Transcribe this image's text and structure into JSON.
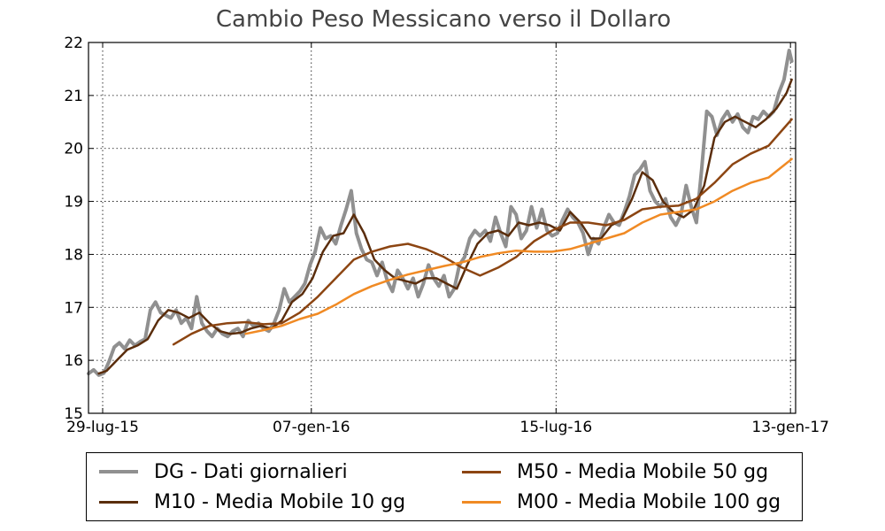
{
  "chart_data": {
    "type": "line",
    "title": "Cambio Peso  Messicano verso il Dollaro",
    "xlabel": "",
    "ylabel": "",
    "ylim": [
      15,
      22
    ],
    "y_ticks": [
      15,
      16,
      17,
      18,
      19,
      20,
      21,
      22
    ],
    "x_range": [
      "2015-07-18",
      "2017-01-17"
    ],
    "x_ticks": [
      {
        "date": "2015-07-29",
        "label": "29-lug-15"
      },
      {
        "date": "2016-01-07",
        "label": "07-gen-16"
      },
      {
        "date": "2016-07-15",
        "label": "15-lug-16"
      },
      {
        "date": "2017-01-13",
        "label": "13-gen-17"
      }
    ],
    "grid": true,
    "legend_position": "bottom",
    "series": [
      {
        "name": "DG - Dati giornalieri",
        "color": "#909090",
        "width": 4,
        "points": [
          [
            "2015-07-18",
            15.75
          ],
          [
            "2015-07-22",
            15.82
          ],
          [
            "2015-07-26",
            15.72
          ],
          [
            "2015-07-30",
            15.76
          ],
          [
            "2015-08-03",
            15.98
          ],
          [
            "2015-08-07",
            16.25
          ],
          [
            "2015-08-11",
            16.33
          ],
          [
            "2015-08-15",
            16.22
          ],
          [
            "2015-08-19",
            16.38
          ],
          [
            "2015-08-23",
            16.28
          ],
          [
            "2015-08-27",
            16.35
          ],
          [
            "2015-08-31",
            16.4
          ],
          [
            "2015-09-04",
            16.95
          ],
          [
            "2015-09-08",
            17.1
          ],
          [
            "2015-09-12",
            16.9
          ],
          [
            "2015-09-16",
            16.85
          ],
          [
            "2015-09-20",
            16.8
          ],
          [
            "2015-09-24",
            16.95
          ],
          [
            "2015-09-28",
            16.7
          ],
          [
            "2015-10-02",
            16.8
          ],
          [
            "2015-10-06",
            16.6
          ],
          [
            "2015-10-10",
            17.2
          ],
          [
            "2015-10-14",
            16.7
          ],
          [
            "2015-10-18",
            16.55
          ],
          [
            "2015-10-22",
            16.45
          ],
          [
            "2015-10-26",
            16.6
          ],
          [
            "2015-10-30",
            16.5
          ],
          [
            "2015-11-03",
            16.45
          ],
          [
            "2015-11-07",
            16.55
          ],
          [
            "2015-11-11",
            16.6
          ],
          [
            "2015-11-15",
            16.45
          ],
          [
            "2015-11-19",
            16.75
          ],
          [
            "2015-11-23",
            16.65
          ],
          [
            "2015-11-27",
            16.7
          ],
          [
            "2015-12-01",
            16.6
          ],
          [
            "2015-12-05",
            16.55
          ],
          [
            "2015-12-09",
            16.7
          ],
          [
            "2015-12-13",
            16.95
          ],
          [
            "2015-12-17",
            17.35
          ],
          [
            "2015-12-21",
            17.1
          ],
          [
            "2015-12-25",
            17.2
          ],
          [
            "2015-12-29",
            17.3
          ],
          [
            "2016-01-02",
            17.45
          ],
          [
            "2016-01-06",
            17.8
          ],
          [
            "2016-01-10",
            18.05
          ],
          [
            "2016-01-14",
            18.5
          ],
          [
            "2016-01-18",
            18.3
          ],
          [
            "2016-01-22",
            18.35
          ],
          [
            "2016-01-26",
            18.2
          ],
          [
            "2016-01-30",
            18.55
          ],
          [
            "2016-02-03",
            18.85
          ],
          [
            "2016-02-07",
            19.2
          ],
          [
            "2016-02-11",
            18.4
          ],
          [
            "2016-02-15",
            18.1
          ],
          [
            "2016-02-19",
            17.9
          ],
          [
            "2016-02-23",
            17.85
          ],
          [
            "2016-02-27",
            17.6
          ],
          [
            "2016-03-02",
            17.85
          ],
          [
            "2016-03-06",
            17.5
          ],
          [
            "2016-03-10",
            17.3
          ],
          [
            "2016-03-14",
            17.7
          ],
          [
            "2016-03-18",
            17.55
          ],
          [
            "2016-03-22",
            17.35
          ],
          [
            "2016-03-26",
            17.55
          ],
          [
            "2016-03-30",
            17.2
          ],
          [
            "2016-04-03",
            17.45
          ],
          [
            "2016-04-07",
            17.8
          ],
          [
            "2016-04-11",
            17.55
          ],
          [
            "2016-04-15",
            17.4
          ],
          [
            "2016-04-19",
            17.6
          ],
          [
            "2016-04-23",
            17.2
          ],
          [
            "2016-04-27",
            17.35
          ],
          [
            "2016-05-01",
            17.8
          ],
          [
            "2016-05-05",
            17.95
          ],
          [
            "2016-05-09",
            18.3
          ],
          [
            "2016-05-13",
            18.45
          ],
          [
            "2016-05-17",
            18.35
          ],
          [
            "2016-05-21",
            18.45
          ],
          [
            "2016-05-25",
            18.25
          ],
          [
            "2016-05-29",
            18.7
          ],
          [
            "2016-06-02",
            18.4
          ],
          [
            "2016-06-06",
            18.15
          ],
          [
            "2016-06-10",
            18.9
          ],
          [
            "2016-06-14",
            18.75
          ],
          [
            "2016-06-18",
            18.3
          ],
          [
            "2016-06-22",
            18.45
          ],
          [
            "2016-06-26",
            18.9
          ],
          [
            "2016-06-30",
            18.5
          ],
          [
            "2016-07-04",
            18.85
          ],
          [
            "2016-07-08",
            18.45
          ],
          [
            "2016-07-12",
            18.35
          ],
          [
            "2016-07-16",
            18.4
          ],
          [
            "2016-07-20",
            18.65
          ],
          [
            "2016-07-24",
            18.85
          ],
          [
            "2016-07-28",
            18.7
          ],
          [
            "2016-08-01",
            18.6
          ],
          [
            "2016-08-05",
            18.4
          ],
          [
            "2016-08-09",
            18.0
          ],
          [
            "2016-08-13",
            18.3
          ],
          [
            "2016-08-17",
            18.2
          ],
          [
            "2016-08-21",
            18.5
          ],
          [
            "2016-08-25",
            18.75
          ],
          [
            "2016-08-29",
            18.6
          ],
          [
            "2016-09-02",
            18.55
          ],
          [
            "2016-09-06",
            18.8
          ],
          [
            "2016-09-10",
            19.1
          ],
          [
            "2016-09-14",
            19.5
          ],
          [
            "2016-09-18",
            19.6
          ],
          [
            "2016-09-22",
            19.75
          ],
          [
            "2016-09-26",
            19.2
          ],
          [
            "2016-09-30",
            19.0
          ],
          [
            "2016-10-04",
            18.9
          ],
          [
            "2016-10-08",
            19.05
          ],
          [
            "2016-10-12",
            18.7
          ],
          [
            "2016-10-16",
            18.55
          ],
          [
            "2016-10-20",
            18.75
          ],
          [
            "2016-10-24",
            19.3
          ],
          [
            "2016-10-28",
            18.9
          ],
          [
            "2016-11-01",
            18.6
          ],
          [
            "2016-11-05",
            19.6
          ],
          [
            "2016-11-09",
            20.7
          ],
          [
            "2016-11-13",
            20.6
          ],
          [
            "2016-11-17",
            20.25
          ],
          [
            "2016-11-21",
            20.55
          ],
          [
            "2016-11-25",
            20.7
          ],
          [
            "2016-11-29",
            20.5
          ],
          [
            "2016-12-03",
            20.65
          ],
          [
            "2016-12-07",
            20.4
          ],
          [
            "2016-12-11",
            20.3
          ],
          [
            "2016-12-15",
            20.6
          ],
          [
            "2016-12-19",
            20.55
          ],
          [
            "2016-12-23",
            20.7
          ],
          [
            "2016-12-27",
            20.6
          ],
          [
            "2016-12-31",
            20.7
          ],
          [
            "2017-01-04",
            21.05
          ],
          [
            "2017-01-08",
            21.3
          ],
          [
            "2017-01-12",
            21.85
          ],
          [
            "2017-01-14",
            21.65
          ]
        ]
      },
      {
        "name": "M10 - Media Mobile 10 gg",
        "color": "#5a2d0c",
        "width": 2.5,
        "points": [
          [
            "2015-07-26",
            15.75
          ],
          [
            "2015-08-01",
            15.8
          ],
          [
            "2015-08-09",
            16.0
          ],
          [
            "2015-08-17",
            16.2
          ],
          [
            "2015-08-25",
            16.28
          ],
          [
            "2015-09-02",
            16.4
          ],
          [
            "2015-09-10",
            16.75
          ],
          [
            "2015-09-18",
            16.95
          ],
          [
            "2015-09-26",
            16.9
          ],
          [
            "2015-10-04",
            16.8
          ],
          [
            "2015-10-12",
            16.9
          ],
          [
            "2015-10-20",
            16.7
          ],
          [
            "2015-10-28",
            16.55
          ],
          [
            "2015-11-05",
            16.5
          ],
          [
            "2015-11-13",
            16.52
          ],
          [
            "2015-11-21",
            16.6
          ],
          [
            "2015-11-29",
            16.65
          ],
          [
            "2015-12-07",
            16.6
          ],
          [
            "2015-12-15",
            16.75
          ],
          [
            "2015-12-23",
            17.1
          ],
          [
            "2015-12-31",
            17.25
          ],
          [
            "2016-01-08",
            17.55
          ],
          [
            "2016-01-16",
            18.05
          ],
          [
            "2016-01-24",
            18.35
          ],
          [
            "2016-02-01",
            18.4
          ],
          [
            "2016-02-09",
            18.75
          ],
          [
            "2016-02-17",
            18.4
          ],
          [
            "2016-02-25",
            17.9
          ],
          [
            "2016-03-04",
            17.7
          ],
          [
            "2016-03-12",
            17.55
          ],
          [
            "2016-03-20",
            17.5
          ],
          [
            "2016-03-28",
            17.45
          ],
          [
            "2016-04-05",
            17.55
          ],
          [
            "2016-04-13",
            17.55
          ],
          [
            "2016-04-21",
            17.45
          ],
          [
            "2016-04-29",
            17.35
          ],
          [
            "2016-05-07",
            17.8
          ],
          [
            "2016-05-15",
            18.2
          ],
          [
            "2016-05-23",
            18.4
          ],
          [
            "2016-05-31",
            18.45
          ],
          [
            "2016-06-08",
            18.35
          ],
          [
            "2016-06-16",
            18.6
          ],
          [
            "2016-06-24",
            18.55
          ],
          [
            "2016-07-02",
            18.6
          ],
          [
            "2016-07-10",
            18.55
          ],
          [
            "2016-07-18",
            18.45
          ],
          [
            "2016-07-26",
            18.8
          ],
          [
            "2016-08-03",
            18.6
          ],
          [
            "2016-08-11",
            18.3
          ],
          [
            "2016-08-19",
            18.3
          ],
          [
            "2016-08-27",
            18.55
          ],
          [
            "2016-09-04",
            18.65
          ],
          [
            "2016-09-12",
            19.05
          ],
          [
            "2016-09-20",
            19.55
          ],
          [
            "2016-09-28",
            19.4
          ],
          [
            "2016-10-06",
            19.0
          ],
          [
            "2016-10-14",
            18.8
          ],
          [
            "2016-10-22",
            18.7
          ],
          [
            "2016-10-30",
            18.85
          ],
          [
            "2016-11-07",
            19.3
          ],
          [
            "2016-11-15",
            20.2
          ],
          [
            "2016-11-23",
            20.5
          ],
          [
            "2016-12-01",
            20.6
          ],
          [
            "2016-12-09",
            20.5
          ],
          [
            "2016-12-17",
            20.4
          ],
          [
            "2016-12-25",
            20.55
          ],
          [
            "2017-01-02",
            20.75
          ],
          [
            "2017-01-10",
            21.05
          ],
          [
            "2017-01-14",
            21.3
          ]
        ]
      },
      {
        "name": "M50 - Media Mobile 50 gg",
        "color": "#8c4512",
        "width": 2.5,
        "points": [
          [
            "2015-09-22",
            16.3
          ],
          [
            "2015-10-06",
            16.5
          ],
          [
            "2015-10-20",
            16.65
          ],
          [
            "2015-11-03",
            16.7
          ],
          [
            "2015-11-17",
            16.72
          ],
          [
            "2015-12-01",
            16.68
          ],
          [
            "2015-12-15",
            16.7
          ],
          [
            "2015-12-29",
            16.9
          ],
          [
            "2016-01-12",
            17.2
          ],
          [
            "2016-01-26",
            17.55
          ],
          [
            "2016-02-09",
            17.9
          ],
          [
            "2016-02-23",
            18.05
          ],
          [
            "2016-03-08",
            18.15
          ],
          [
            "2016-03-22",
            18.2
          ],
          [
            "2016-04-05",
            18.1
          ],
          [
            "2016-04-19",
            17.95
          ],
          [
            "2016-05-03",
            17.75
          ],
          [
            "2016-05-17",
            17.6
          ],
          [
            "2016-05-31",
            17.75
          ],
          [
            "2016-06-14",
            17.95
          ],
          [
            "2016-06-28",
            18.25
          ],
          [
            "2016-07-12",
            18.45
          ],
          [
            "2016-07-26",
            18.6
          ],
          [
            "2016-08-09",
            18.6
          ],
          [
            "2016-08-23",
            18.55
          ],
          [
            "2016-09-06",
            18.65
          ],
          [
            "2016-09-20",
            18.85
          ],
          [
            "2016-10-04",
            18.9
          ],
          [
            "2016-10-18",
            18.92
          ],
          [
            "2016-11-01",
            19.05
          ],
          [
            "2016-11-15",
            19.35
          ],
          [
            "2016-11-29",
            19.7
          ],
          [
            "2016-12-13",
            19.9
          ],
          [
            "2016-12-27",
            20.05
          ],
          [
            "2017-01-14",
            20.55
          ]
        ]
      },
      {
        "name": "M00 - Media Mobile 100 gg",
        "color": "#f08a24",
        "width": 2.5,
        "points": [
          [
            "2015-11-17",
            16.5
          ],
          [
            "2015-12-01",
            16.57
          ],
          [
            "2015-12-15",
            16.65
          ],
          [
            "2015-12-29",
            16.78
          ],
          [
            "2016-01-12",
            16.88
          ],
          [
            "2016-01-26",
            17.05
          ],
          [
            "2016-02-09",
            17.25
          ],
          [
            "2016-02-23",
            17.4
          ],
          [
            "2016-03-08",
            17.52
          ],
          [
            "2016-03-22",
            17.62
          ],
          [
            "2016-04-05",
            17.7
          ],
          [
            "2016-04-19",
            17.78
          ],
          [
            "2016-05-03",
            17.85
          ],
          [
            "2016-05-17",
            17.95
          ],
          [
            "2016-05-31",
            18.02
          ],
          [
            "2016-06-14",
            18.07
          ],
          [
            "2016-06-28",
            18.05
          ],
          [
            "2016-07-12",
            18.05
          ],
          [
            "2016-07-26",
            18.1
          ],
          [
            "2016-08-09",
            18.2
          ],
          [
            "2016-08-23",
            18.3
          ],
          [
            "2016-09-06",
            18.4
          ],
          [
            "2016-09-20",
            18.6
          ],
          [
            "2016-10-04",
            18.75
          ],
          [
            "2016-10-18",
            18.8
          ],
          [
            "2016-11-01",
            18.85
          ],
          [
            "2016-11-15",
            19.0
          ],
          [
            "2016-11-29",
            19.2
          ],
          [
            "2016-12-13",
            19.35
          ],
          [
            "2016-12-27",
            19.45
          ],
          [
            "2017-01-14",
            19.8
          ]
        ]
      }
    ]
  }
}
